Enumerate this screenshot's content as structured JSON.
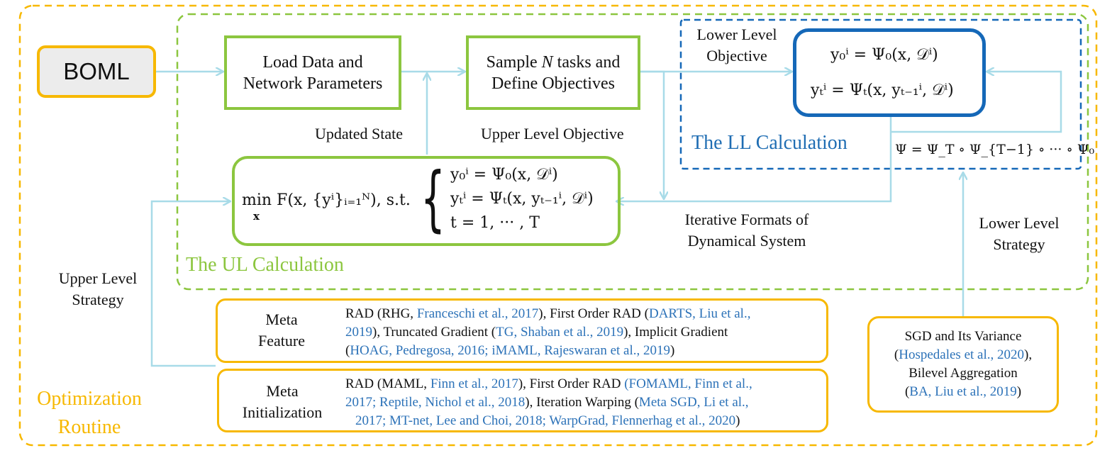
{
  "boml": "BOML",
  "load_box": {
    "line1": "Load Data and",
    "line2": "Network Parameters"
  },
  "sample_box": {
    "line1_pre": "Sample ",
    "line1_var": "N",
    "line1_post": " tasks and",
    "line2": "Define Objectives"
  },
  "lower_level_objective": {
    "line1": "Lower Level",
    "line2": "Objective"
  },
  "ll_box": {
    "eq1": "y₀ⁱ = Ψ₀(x, 𝒟ⁱ)",
    "eq2": "yₜⁱ  =  Ψₜ(x, yₜ₋₁ⁱ, 𝒟ⁱ)"
  },
  "ll_calc_label": "The LL Calculation",
  "psi_composition": "Ψ = Ψ_T ∘ Ψ_{T−1} ∘ ··· ∘ Ψ₀",
  "updated_state": "Updated State",
  "upper_level_objective": "Upper Level Objective",
  "ul_box": {
    "objective": "min F(x, {yⁱ}ᵢ₌₁ᴺ), s.t.",
    "min_sub": "x",
    "c1": "y₀ⁱ = Ψ₀(x, 𝒟ⁱ)",
    "c2": "yₜⁱ = Ψₜ(x, yₜ₋₁ⁱ, 𝒟ⁱ)",
    "c3": "t = 1, ··· , T"
  },
  "iterative_formats": {
    "line1": "Iterative Formats of",
    "line2": "Dynamical System"
  },
  "lower_level_strategy": {
    "line1": "Lower Level",
    "line2": "Strategy"
  },
  "ul_calc_label": "The UL Calculation",
  "upper_level_strategy": {
    "line1": "Upper Level",
    "line2": "Strategy"
  },
  "optimization_routine": {
    "line1": "Optimization",
    "line2": "Routine"
  },
  "meta_feature": {
    "label1": "Meta",
    "label2": "Feature",
    "l1_a": "RAD (RHG, ",
    "l1_ref1": "Franceschi et al., 2017",
    "l1_b": "), First Order RAD (",
    "l1_ref2": "DARTS, Liu et al.,",
    "l2_ref2b": "2019",
    "l2_a": "), Truncated Gradient (",
    "l2_ref3": "TG, Shaban et al., 2019",
    "l2_b": "), Implicit Gradient",
    "l3_a": "(",
    "l3_ref4": "HOAG, Pedregosa, 2016; iMAML, Rajeswaran et al., 2019",
    "l3_b": ")"
  },
  "meta_init": {
    "label1": "Meta",
    "label2": "Initialization",
    "l1_a": "RAD (MAML, ",
    "l1_ref1": "Finn et al., 2017",
    "l1_b": "), First Order RAD  ",
    "l1_ref2": "(FOMAML, Finn et al.,",
    "l2_ref2b": "2017; Reptile, Nichol et al., 2018",
    "l2_a": "), Iteration Warping (",
    "l2_ref3": "Meta SGD, Li et al.,",
    "l3_ref3b": "2017;  MT-net, Lee and Choi, 2018;  WarpGrad, Flennerhag et al., 2020",
    "l3_b": ")"
  },
  "sgd_box": {
    "l1": "SGD and Its Variance",
    "l2_a": "(",
    "l2_ref": "Hospedales et al., 2020",
    "l2_b": "),",
    "l3": "Bilevel Aggregation",
    "l4_a": "(",
    "l4_ref": "BA, Liu et al., 2019",
    "l4_b": ")"
  },
  "colors": {
    "green": "#8cc63f",
    "orange": "#f7b800",
    "blue": "#1568b8",
    "arrow": "#a8dbe8"
  }
}
